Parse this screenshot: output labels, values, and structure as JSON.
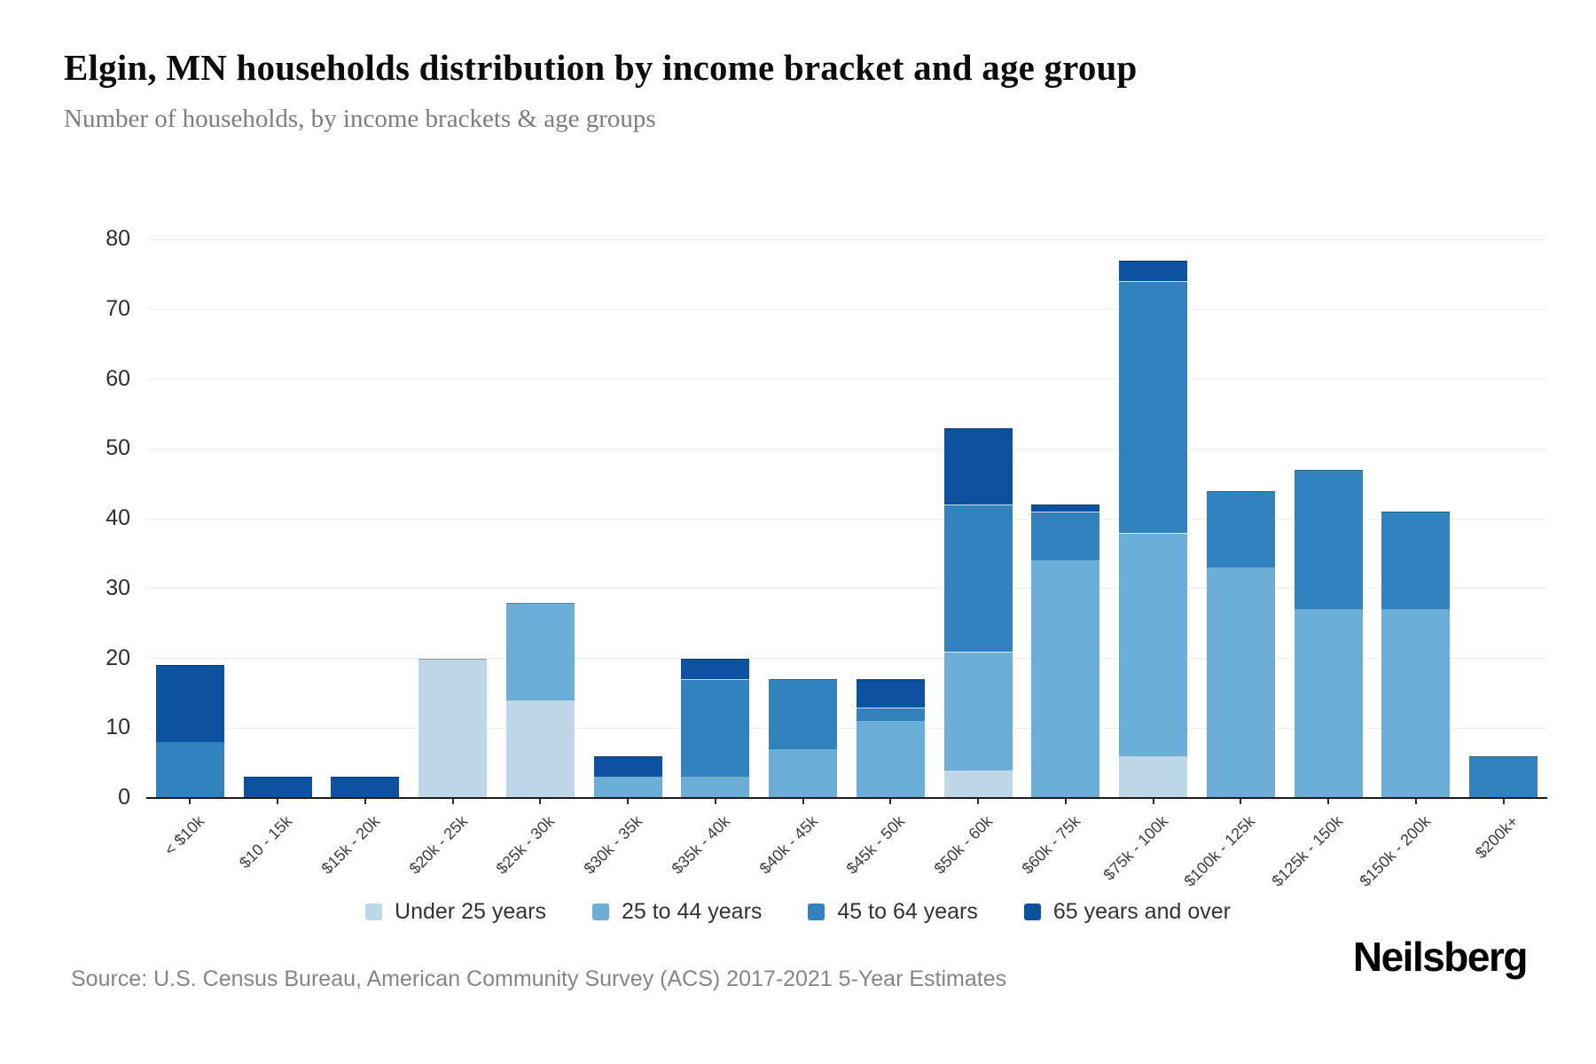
{
  "header": {
    "title": "Elgin, MN households distribution by income bracket and age group",
    "subtitle": "Number of households, by income brackets & age groups"
  },
  "chart_data": {
    "type": "bar",
    "stacked": true,
    "title": "Elgin, MN households distribution by income bracket and age group",
    "subtitle": "Number of households, by income brackets & age groups",
    "xlabel": "",
    "ylabel": "",
    "ylim": [
      0,
      80
    ],
    "yticks": [
      0,
      10,
      20,
      30,
      40,
      50,
      60,
      70,
      80
    ],
    "grid": true,
    "legend_position": "bottom",
    "categories": [
      "< $10k",
      "$10 - 15k",
      "$15k - 20k",
      "$20k - 25k",
      "$25k - 30k",
      "$30k - 35k",
      "$35k - 40k",
      "$40k - 45k",
      "$45k - 50k",
      "$50k - 60k",
      "$60k - 75k",
      "$75k - 100k",
      "$100k - 125k",
      "$125k - 150k",
      "$150k - 200k",
      "$200k+"
    ],
    "series": [
      {
        "name": "Under 25 years",
        "color": "#bed8ea",
        "values": [
          0,
          0,
          0,
          20,
          14,
          0,
          0,
          0,
          0,
          4,
          0,
          6,
          0,
          0,
          0,
          0
        ]
      },
      {
        "name": "25 to 44 years",
        "color": "#6caed8",
        "values": [
          0,
          0,
          0,
          0,
          14,
          3,
          3,
          7,
          11,
          17,
          34,
          32,
          33,
          27,
          27,
          0
        ]
      },
      {
        "name": "45 to 64 years",
        "color": "#3282bd",
        "values": [
          8,
          0,
          0,
          0,
          0,
          0,
          14,
          10,
          2,
          21,
          7,
          36,
          11,
          20,
          14,
          6
        ]
      },
      {
        "name": "65 years and over",
        "color": "#0d51a1",
        "values": [
          11,
          3,
          3,
          0,
          0,
          3,
          3,
          0,
          4,
          11,
          1,
          3,
          0,
          0,
          0,
          0
        ]
      }
    ]
  },
  "footer": {
    "source": "Source: U.S. Census Bureau, American Community Survey (ACS) 2017-2021 5-Year Estimates",
    "brand": "Neilsberg"
  }
}
